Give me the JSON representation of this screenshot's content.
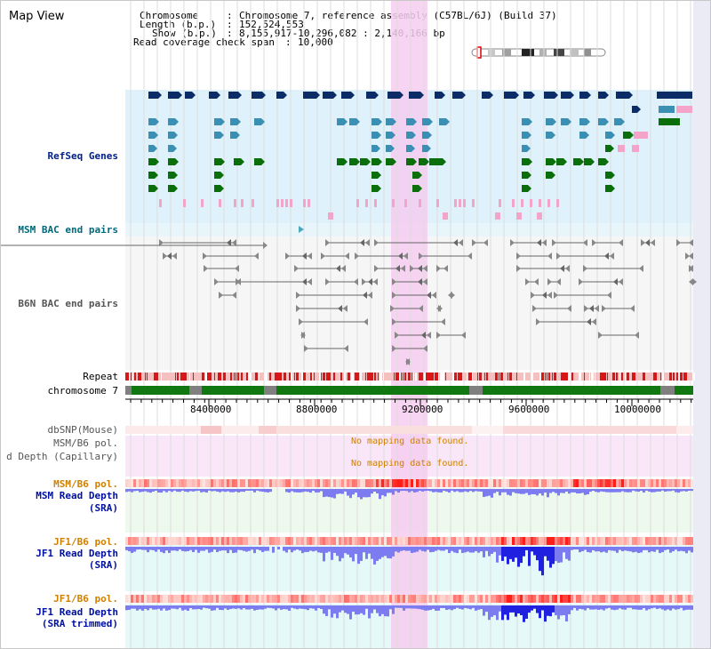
{
  "title": "Map View",
  "header": {
    "chromosome_label": "Chromosome",
    "chromosome_value": "Chromosome 7, reference assembly (C57BL/6J) (Build 37)",
    "length_label": "Length (b.p.)",
    "length_value": "152,524,553",
    "show_label": "Show (b.p.)",
    "show_value": "8,155,917-10,296,082 : 2,140,166 bp",
    "span_label": "Read coverage check span",
    "span_value": "10,000"
  },
  "tracks": {
    "refseq": "RefSeq Genes",
    "msm_bac": "MSM BAC end pairs",
    "b6n_bac": "B6N BAC end pairs",
    "repeat": "Repeat",
    "chromosome": "chromosome 7",
    "dbsnp": "dbSNP(Mouse)",
    "msm_b6_pol_1": "MSM/B6 pol.",
    "depth_capillary": "d Depth (Capillary)",
    "msm_b6_pol_2": "MSM/B6 pol.",
    "msm_depth_1": "MSM Read Depth",
    "msm_depth_2": "(SRA)",
    "jf1_pol_1": "JF1/B6 pol.",
    "jf1_depth_1": "JF1 Read Depth",
    "jf1_depth_2": "(SRA)",
    "jf1_pol_2": "JF1/B6 pol.",
    "jf1_trim_1": "JF1 Read Depth",
    "jf1_trim_2": "(SRA trimmed)"
  },
  "no_mapping": "No mapping data found.",
  "axis": {
    "ticks": [
      "8400000",
      "8800000",
      "9200000",
      "9600000",
      "10000000"
    ]
  },
  "colors": {
    "refseq_bg": "#dff2fb",
    "highlight": "#f6cdf0",
    "gene_navy": "#0c2c68",
    "gene_steel": "#3a8fb2",
    "gene_green": "#0a6e0a",
    "gene_pink": "#f4a4c8",
    "bac_arrow": "#4aa8b8",
    "repeat_red": "#d81818",
    "chrom_green": "#117811",
    "snp_pink": "#f5c0c0",
    "msm_label": "#006a7a",
    "depth_label": "#0010a0",
    "pol_label": "#d08000",
    "depth_bar": "#7c7cf0",
    "depth_bar_strong": "#2020e0"
  }
}
